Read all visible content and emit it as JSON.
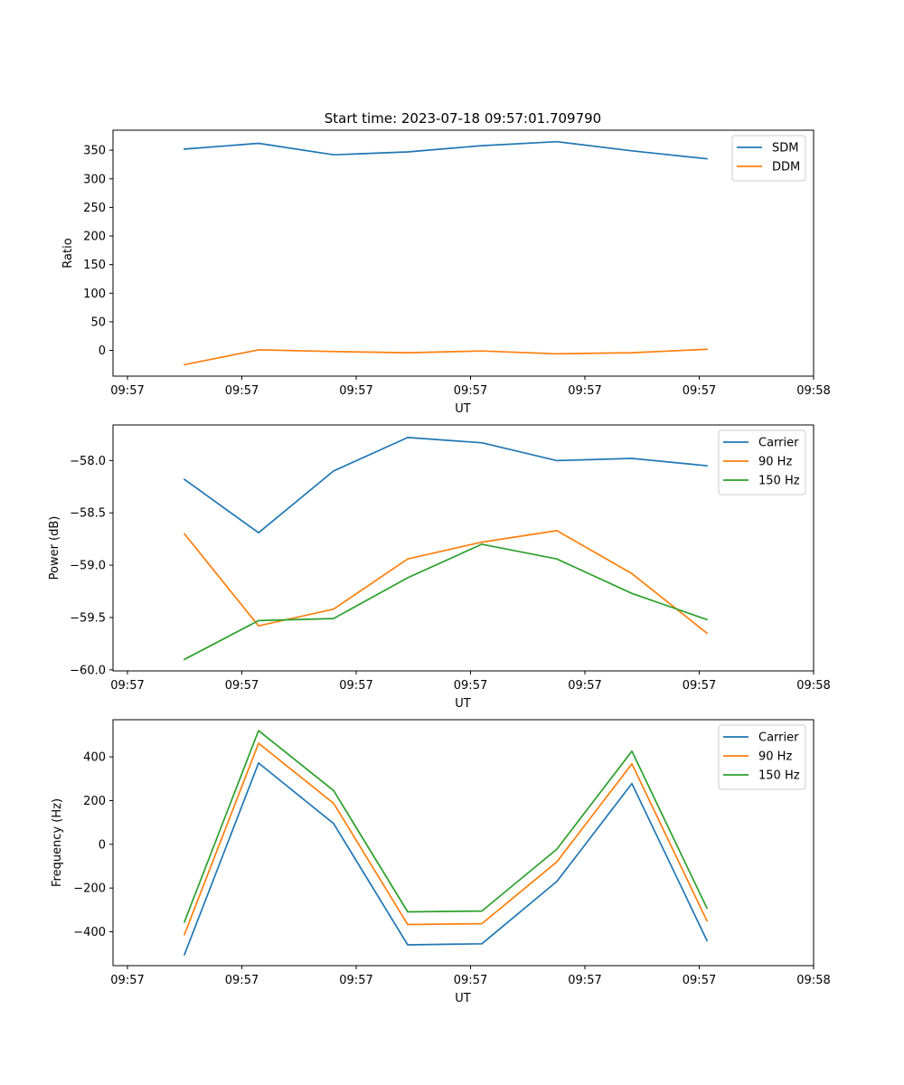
{
  "chart_data": [
    {
      "type": "line",
      "title": "Start time: 2023-07-18 09:57:01.709790",
      "xlabel": "UT",
      "ylabel": "Ratio",
      "x_tick_labels": [
        "09:57",
        "09:57",
        "09:57",
        "09:57",
        "09:57",
        "09:57",
        "09:58"
      ],
      "ylim": [
        -45,
        385
      ],
      "yticks": [
        0,
        50,
        100,
        150,
        200,
        250,
        300,
        350
      ],
      "legend_position": "top-right",
      "series": [
        {
          "name": "SDM",
          "color": "#1f77b4",
          "values": [
            352,
            362,
            342,
            347,
            358,
            365,
            349,
            335
          ]
        },
        {
          "name": "DDM",
          "color": "#ff7f0e",
          "values": [
            -25,
            1,
            -2,
            -4,
            -1,
            -6,
            -4,
            2
          ]
        }
      ]
    },
    {
      "type": "line",
      "title": "",
      "xlabel": "UT",
      "ylabel": "Power (dB)",
      "x_tick_labels": [
        "09:57",
        "09:57",
        "09:57",
        "09:57",
        "09:57",
        "09:57",
        "09:58"
      ],
      "ylim": [
        -60.01,
        -57.66
      ],
      "yticks": [
        -60.0,
        -59.5,
        -59.0,
        -58.5,
        -58.0
      ],
      "legend_position": "top-right",
      "series": [
        {
          "name": "Carrier",
          "color": "#1f77b4",
          "values": [
            -58.18,
            -58.69,
            -58.1,
            -57.78,
            -57.83,
            -58.0,
            -57.98,
            -58.05
          ]
        },
        {
          "name": "90 Hz",
          "color": "#ff7f0e",
          "values": [
            -58.7,
            -59.58,
            -59.42,
            -58.94,
            -58.78,
            -58.67,
            -59.08,
            -59.65
          ]
        },
        {
          "name": "150 Hz",
          "color": "#2ca02c",
          "values": [
            -59.9,
            -59.53,
            -59.51,
            -59.12,
            -58.8,
            -58.94,
            -59.27,
            -59.52
          ]
        }
      ]
    },
    {
      "type": "line",
      "title": "",
      "xlabel": "UT",
      "ylabel": "Frequency (Hz)",
      "x_tick_labels": [
        "09:57",
        "09:57",
        "09:57",
        "09:57",
        "09:57",
        "09:57",
        "09:58"
      ],
      "ylim": [
        -555,
        570
      ],
      "yticks": [
        -400,
        -200,
        0,
        200,
        400
      ],
      "legend_position": "top-right",
      "series": [
        {
          "name": "Carrier",
          "color": "#1f77b4",
          "values": [
            -505,
            372,
            95,
            -460,
            -455,
            -170,
            278,
            -440
          ]
        },
        {
          "name": "90 Hz",
          "color": "#ff7f0e",
          "values": [
            -413,
            462,
            188,
            -367,
            -363,
            -80,
            368,
            -350
          ]
        },
        {
          "name": "150 Hz",
          "color": "#2ca02c",
          "values": [
            -355,
            520,
            246,
            -309,
            -305,
            -22,
            426,
            -292
          ]
        }
      ]
    }
  ]
}
